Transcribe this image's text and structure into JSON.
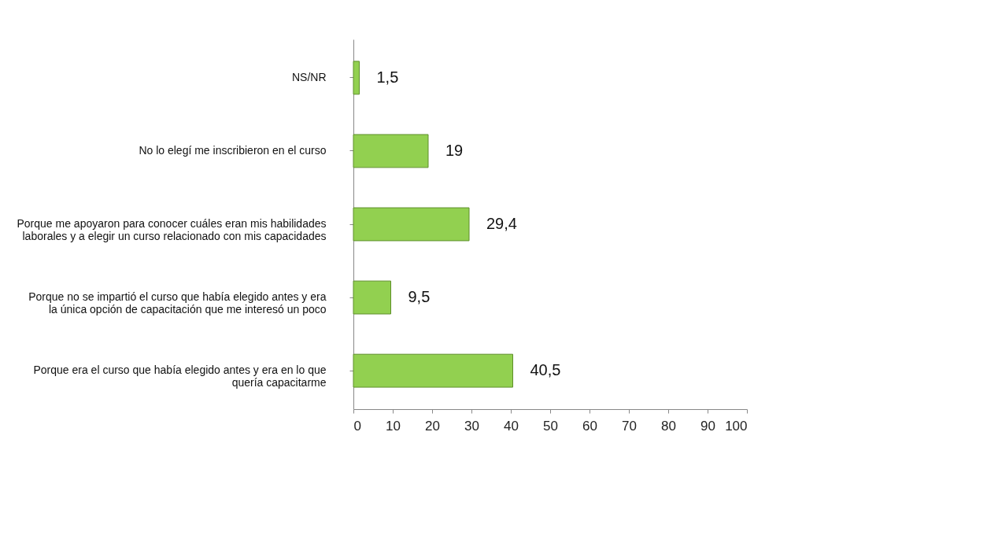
{
  "chart_data": {
    "type": "bar",
    "orientation": "horizontal",
    "categories": [
      "NS/NR",
      "No lo elegí me inscribieron en el curso",
      "Porque me apoyaron para conocer cuáles eran mis habilidades laborales y a elegir un  curso relacionado con mis capacidades",
      "Porque no se impartió el curso que había elegido antes  y era la única opción de capacitación que me interesó un poco",
      "Porque era el curso que había elegido antes  y era en lo que quería capacitarme"
    ],
    "values": [
      1.5,
      19,
      29.4,
      9.5,
      40.5
    ],
    "value_labels": [
      "1,5",
      "19",
      "29,4",
      "9,5",
      "40,5"
    ],
    "color": "#92d050",
    "xlim": [
      0,
      100
    ],
    "xticks": [
      0,
      10,
      20,
      30,
      40,
      50,
      60,
      70,
      80,
      90,
      100
    ],
    "grid": false
  }
}
